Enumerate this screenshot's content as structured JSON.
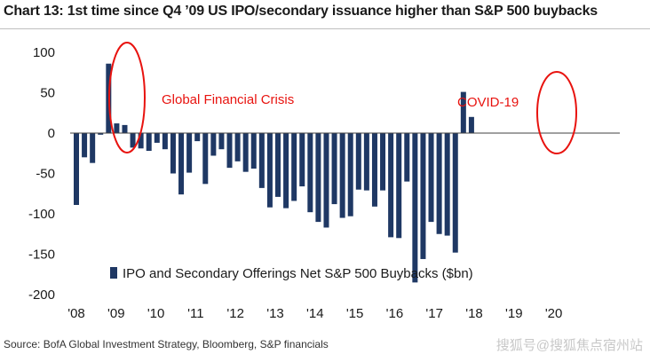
{
  "chart_data": {
    "type": "bar",
    "title": "Chart 13: 1st time since Q4 ’09 US IPO/secondary issuance higher than S&P 500 buybacks",
    "legend": "IPO and Secondary Offerings Net S&P 500 Buybacks ($bn)",
    "ylim": [
      -200,
      100
    ],
    "yticks": [
      100,
      50,
      0,
      -50,
      -100,
      -150,
      -200
    ],
    "xticks": [
      "'08",
      "'09",
      "'10",
      "'11",
      "'12",
      "'13",
      "'14",
      "'15",
      "'16",
      "'17",
      "'18",
      "'19",
      "'20"
    ],
    "bar_color": "#1f3864",
    "values": [
      -89,
      -30,
      -37,
      -2,
      86,
      12,
      10,
      -18,
      -19,
      -22,
      -12,
      -20,
      -50,
      -76,
      -49,
      -10,
      -63,
      -28,
      -20,
      -43,
      -35,
      -48,
      -44,
      -68,
      -92,
      -79,
      -93,
      -84,
      -66,
      -98,
      -110,
      -117,
      -88,
      -105,
      -103,
      -70,
      -71,
      -91,
      -71,
      -129,
      -130,
      -60,
      -185,
      -156,
      -110,
      -125,
      -127,
      -148,
      51,
      20
    ],
    "annotations": [
      {
        "text": "Global Financial Crisis",
        "color": "#e8130f"
      },
      {
        "text": "COVID-19",
        "color": "#e8130f"
      }
    ]
  },
  "source": "Source: BofA Global Investment Strategy, Bloomberg, S&P financials",
  "watermark": "搜狐号@搜狐焦点宿州站"
}
